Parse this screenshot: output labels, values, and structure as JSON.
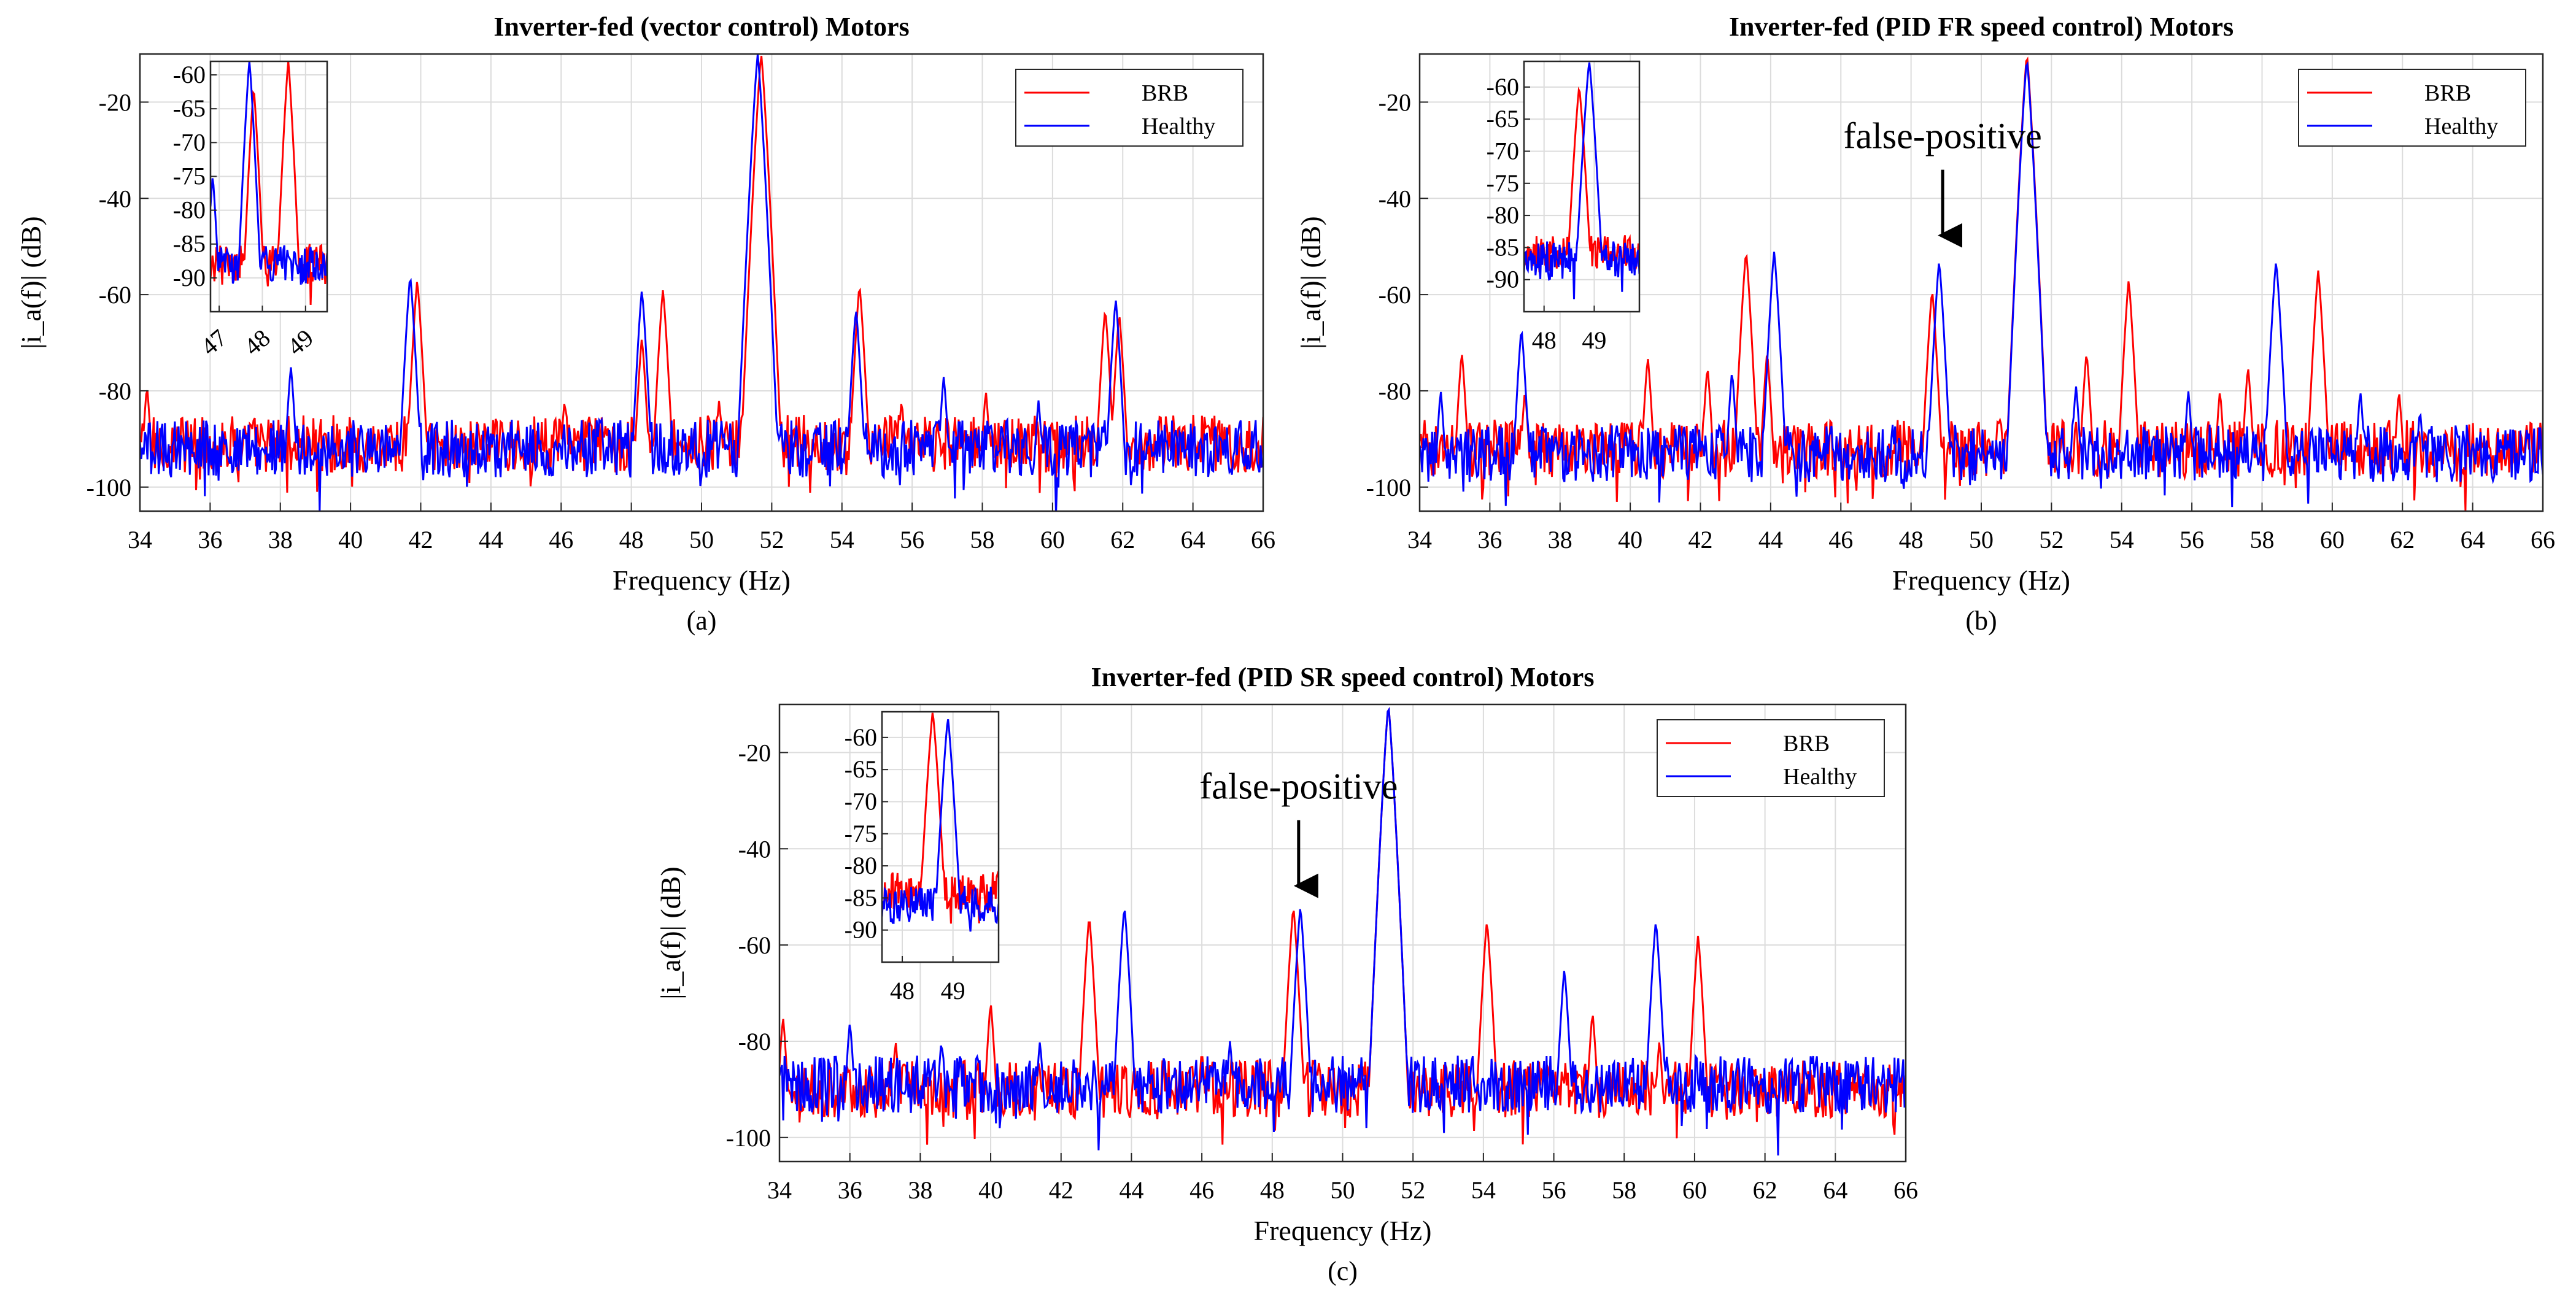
{
  "colors": {
    "brb": "#ff0000",
    "healthy": "#0000ff",
    "grid": "#dcdcdc",
    "axis": "#262626"
  },
  "panels": [
    {
      "caption": "(a)",
      "chart_data": {
        "type": "line",
        "title": "Inverter-fed (vector control) Motors",
        "xlabel": "Frequency (Hz)",
        "ylabel": "|i_a(f)| (dB)",
        "xlim": [
          34,
          66
        ],
        "ylim": [
          -105,
          -10
        ],
        "xticks": [
          34,
          36,
          38,
          40,
          42,
          44,
          46,
          48,
          50,
          52,
          54,
          56,
          58,
          60,
          62,
          64,
          66
        ],
        "yticks": [
          -20,
          -40,
          -60,
          -80,
          -100
        ],
        "grid": true,
        "legend_position": "top-right",
        "series": [
          {
            "name": "BRB",
            "color": "#ff0000",
            "floor": -91,
            "peaks": [
              [
                34.2,
                -79
              ],
              [
                41.9,
                -57
              ],
              [
                46.1,
                -82
              ],
              [
                48.3,
                -69
              ],
              [
                48.9,
                -59
              ],
              [
                50.5,
                -82
              ],
              [
                51.7,
                -10
              ],
              [
                54.5,
                -58
              ],
              [
                55.7,
                -82
              ],
              [
                58.1,
                -80
              ],
              [
                61.5,
                -63
              ],
              [
                61.9,
                -64
              ]
            ]
          },
          {
            "name": "Healthy",
            "color": "#0000ff",
            "floor": -92,
            "peaks": [
              [
                38.3,
                -75
              ],
              [
                41.7,
                -56
              ],
              [
                47.1,
                -85
              ],
              [
                48.3,
                -59
              ],
              [
                51.6,
                -10
              ],
              [
                54.4,
                -63
              ],
              [
                56.9,
                -77
              ],
              [
                59.6,
                -82
              ],
              [
                61.8,
                -61
              ]
            ]
          }
        ],
        "inset": {
          "xlim": [
            46.8,
            49.5
          ],
          "ylim": [
            -95,
            -58
          ],
          "xticks": [
            47,
            48,
            49
          ],
          "yticks": [
            -60,
            -65,
            -70,
            -75,
            -80,
            -85,
            -90
          ],
          "xtick_rotated": true,
          "series": [
            {
              "name": "BRB",
              "color": "#ff0000",
              "floor": -88,
              "peaks": [
                [
                  47.8,
                  -62
                ],
                [
                  48.6,
                  -58
                ]
              ]
            },
            {
              "name": "Healthy",
              "color": "#0000ff",
              "floor": -88,
              "peaks": [
                [
                  46.85,
                  -75
                ],
                [
                  47.7,
                  -58
                ]
              ]
            }
          ]
        }
      }
    },
    {
      "caption": "(b)",
      "chart_data": {
        "type": "line",
        "title": "Inverter-fed (PID FR speed control) Motors",
        "xlabel": "Frequency (Hz)",
        "ylabel": "|i_a(f)| (dB)",
        "xlim": [
          34,
          66
        ],
        "ylim": [
          -105,
          -10
        ],
        "xticks": [
          34,
          36,
          38,
          40,
          42,
          44,
          46,
          48,
          50,
          52,
          54,
          56,
          58,
          60,
          62,
          64,
          66
        ],
        "yticks": [
          -20,
          -40,
          -60,
          -80,
          -100
        ],
        "grid": true,
        "legend_position": "top-right",
        "annotation": {
          "text": "false-positive",
          "x": 48.9,
          "y": -50
        },
        "series": [
          {
            "name": "BRB",
            "color": "#ff0000",
            "floor": -92,
            "peaks": [
              [
                35.2,
                -72
              ],
              [
                37.0,
                -80
              ],
              [
                40.5,
                -73
              ],
              [
                42.2,
                -75
              ],
              [
                43.3,
                -51
              ],
              [
                43.9,
                -72
              ],
              [
                48.6,
                -59
              ],
              [
                51.3,
                -10
              ],
              [
                53.0,
                -72
              ],
              [
                54.2,
                -57
              ],
              [
                56.8,
                -80
              ],
              [
                57.6,
                -75
              ],
              [
                59.6,
                -55
              ],
              [
                61.9,
                -80
              ]
            ]
          },
          {
            "name": "Healthy",
            "color": "#0000ff",
            "floor": -93,
            "peaks": [
              [
                34.6,
                -80
              ],
              [
                36.9,
                -67
              ],
              [
                42.9,
                -76
              ],
              [
                44.1,
                -51
              ],
              [
                48.8,
                -53
              ],
              [
                51.3,
                -11
              ],
              [
                52.7,
                -79
              ],
              [
                55.9,
                -80
              ],
              [
                58.4,
                -53
              ],
              [
                60.8,
                -80
              ],
              [
                62.5,
                -84
              ]
            ]
          }
        ],
        "inset": {
          "xlim": [
            47.6,
            49.9
          ],
          "ylim": [
            -95,
            -56
          ],
          "xticks": [
            48,
            49
          ],
          "yticks": [
            -60,
            -65,
            -70,
            -75,
            -80,
            -85,
            -90
          ],
          "xtick_rotated": false,
          "series": [
            {
              "name": "BRB",
              "color": "#ff0000",
              "floor": -86,
              "peaks": [
                [
                  48.7,
                  -60
                ]
              ]
            },
            {
              "name": "Healthy",
              "color": "#0000ff",
              "floor": -87,
              "peaks": [
                [
                  48.9,
                  -56
                ]
              ]
            }
          ]
        }
      }
    },
    {
      "caption": "(c)",
      "chart_data": {
        "type": "line",
        "title": "Inverter-fed (PID SR speed control) Motors",
        "xlabel": "Frequency (Hz)",
        "ylabel": "|i_a(f)| (dB)",
        "xlim": [
          34,
          66
        ],
        "ylim": [
          -105,
          -10
        ],
        "xticks": [
          34,
          36,
          38,
          40,
          42,
          44,
          46,
          48,
          50,
          52,
          54,
          56,
          58,
          60,
          62,
          64,
          66
        ],
        "yticks": [
          -20,
          -40,
          -60,
          -80,
          -100
        ],
        "grid": true,
        "legend_position": "top-right",
        "annotation": {
          "text": "false-positive",
          "x": 48.75,
          "y": -50
        },
        "series": [
          {
            "name": "BRB",
            "color": "#ff0000",
            "floor": -90,
            "peaks": [
              [
                34.1,
                -75
              ],
              [
                37.3,
                -80
              ],
              [
                40.0,
                -72
              ],
              [
                42.8,
                -54
              ],
              [
                46.0,
                -82
              ],
              [
                48.6,
                -52
              ],
              [
                51.3,
                -10
              ],
              [
                54.1,
                -55
              ],
              [
                57.1,
                -74
              ],
              [
                59.0,
                -80
              ],
              [
                60.1,
                -58
              ]
            ]
          },
          {
            "name": "Healthy",
            "color": "#0000ff",
            "floor": -89,
            "peaks": [
              [
                36.0,
                -76
              ],
              [
                38.6,
                -80
              ],
              [
                41.4,
                -80
              ],
              [
                43.8,
                -52
              ],
              [
                46.8,
                -80
              ],
              [
                48.8,
                -52
              ],
              [
                51.3,
                -10
              ],
              [
                56.3,
                -65
              ],
              [
                58.9,
                -55
              ],
              [
                61.9,
                -87
              ]
            ]
          }
        ],
        "inset": {
          "xlim": [
            47.6,
            49.9
          ],
          "ylim": [
            -95,
            -56
          ],
          "xticks": [
            48,
            49
          ],
          "yticks": [
            -60,
            -65,
            -70,
            -75,
            -80,
            -85,
            -90
          ],
          "xtick_rotated": false,
          "series": [
            {
              "name": "BRB",
              "color": "#ff0000",
              "floor": -84,
              "peaks": [
                [
                  48.6,
                  -56
                ]
              ]
            },
            {
              "name": "Healthy",
              "color": "#0000ff",
              "floor": -86,
              "peaks": [
                [
                  48.9,
                  -57
                ]
              ]
            }
          ]
        }
      }
    }
  ]
}
